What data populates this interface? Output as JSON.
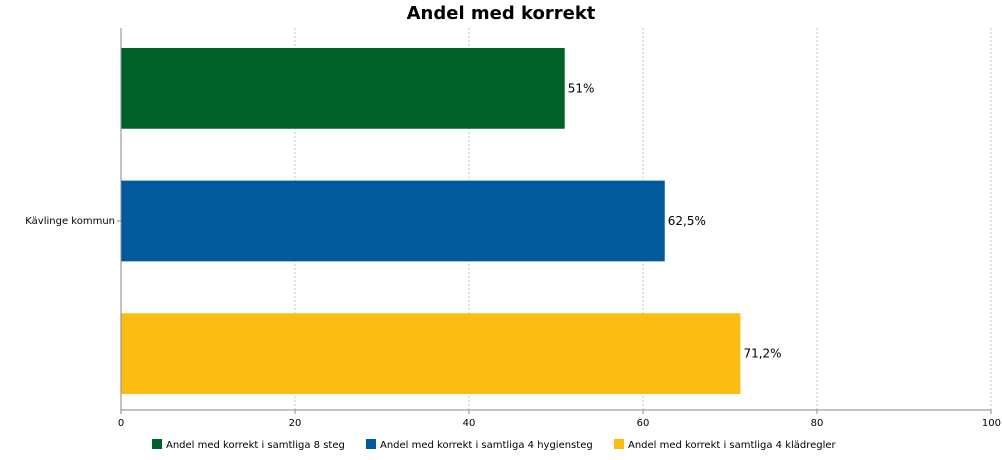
{
  "chart_data": {
    "type": "bar",
    "orientation": "horizontal",
    "title": "Andel med korrekt",
    "categories": [
      "Kävlinge kommun"
    ],
    "series": [
      {
        "name": "Andel med korrekt i samtliga 8 steg",
        "values": [
          51
        ],
        "label": "51%",
        "color": "#006228"
      },
      {
        "name": "Andel med korrekt i samtliga 4 hygiensteg",
        "values": [
          62.5
        ],
        "label": "62,5%",
        "color": "#005a9c"
      },
      {
        "name": "Andel med korrekt i samtliga 4 klädregler",
        "values": [
          71.2
        ],
        "label": "71,2%",
        "color": "#fbbd13"
      }
    ],
    "xlim": [
      0,
      100
    ],
    "xticks": [
      0,
      20,
      40,
      60,
      80,
      100
    ],
    "xlabel": "",
    "ylabel": "",
    "grid": true,
    "legend": "bottom"
  }
}
